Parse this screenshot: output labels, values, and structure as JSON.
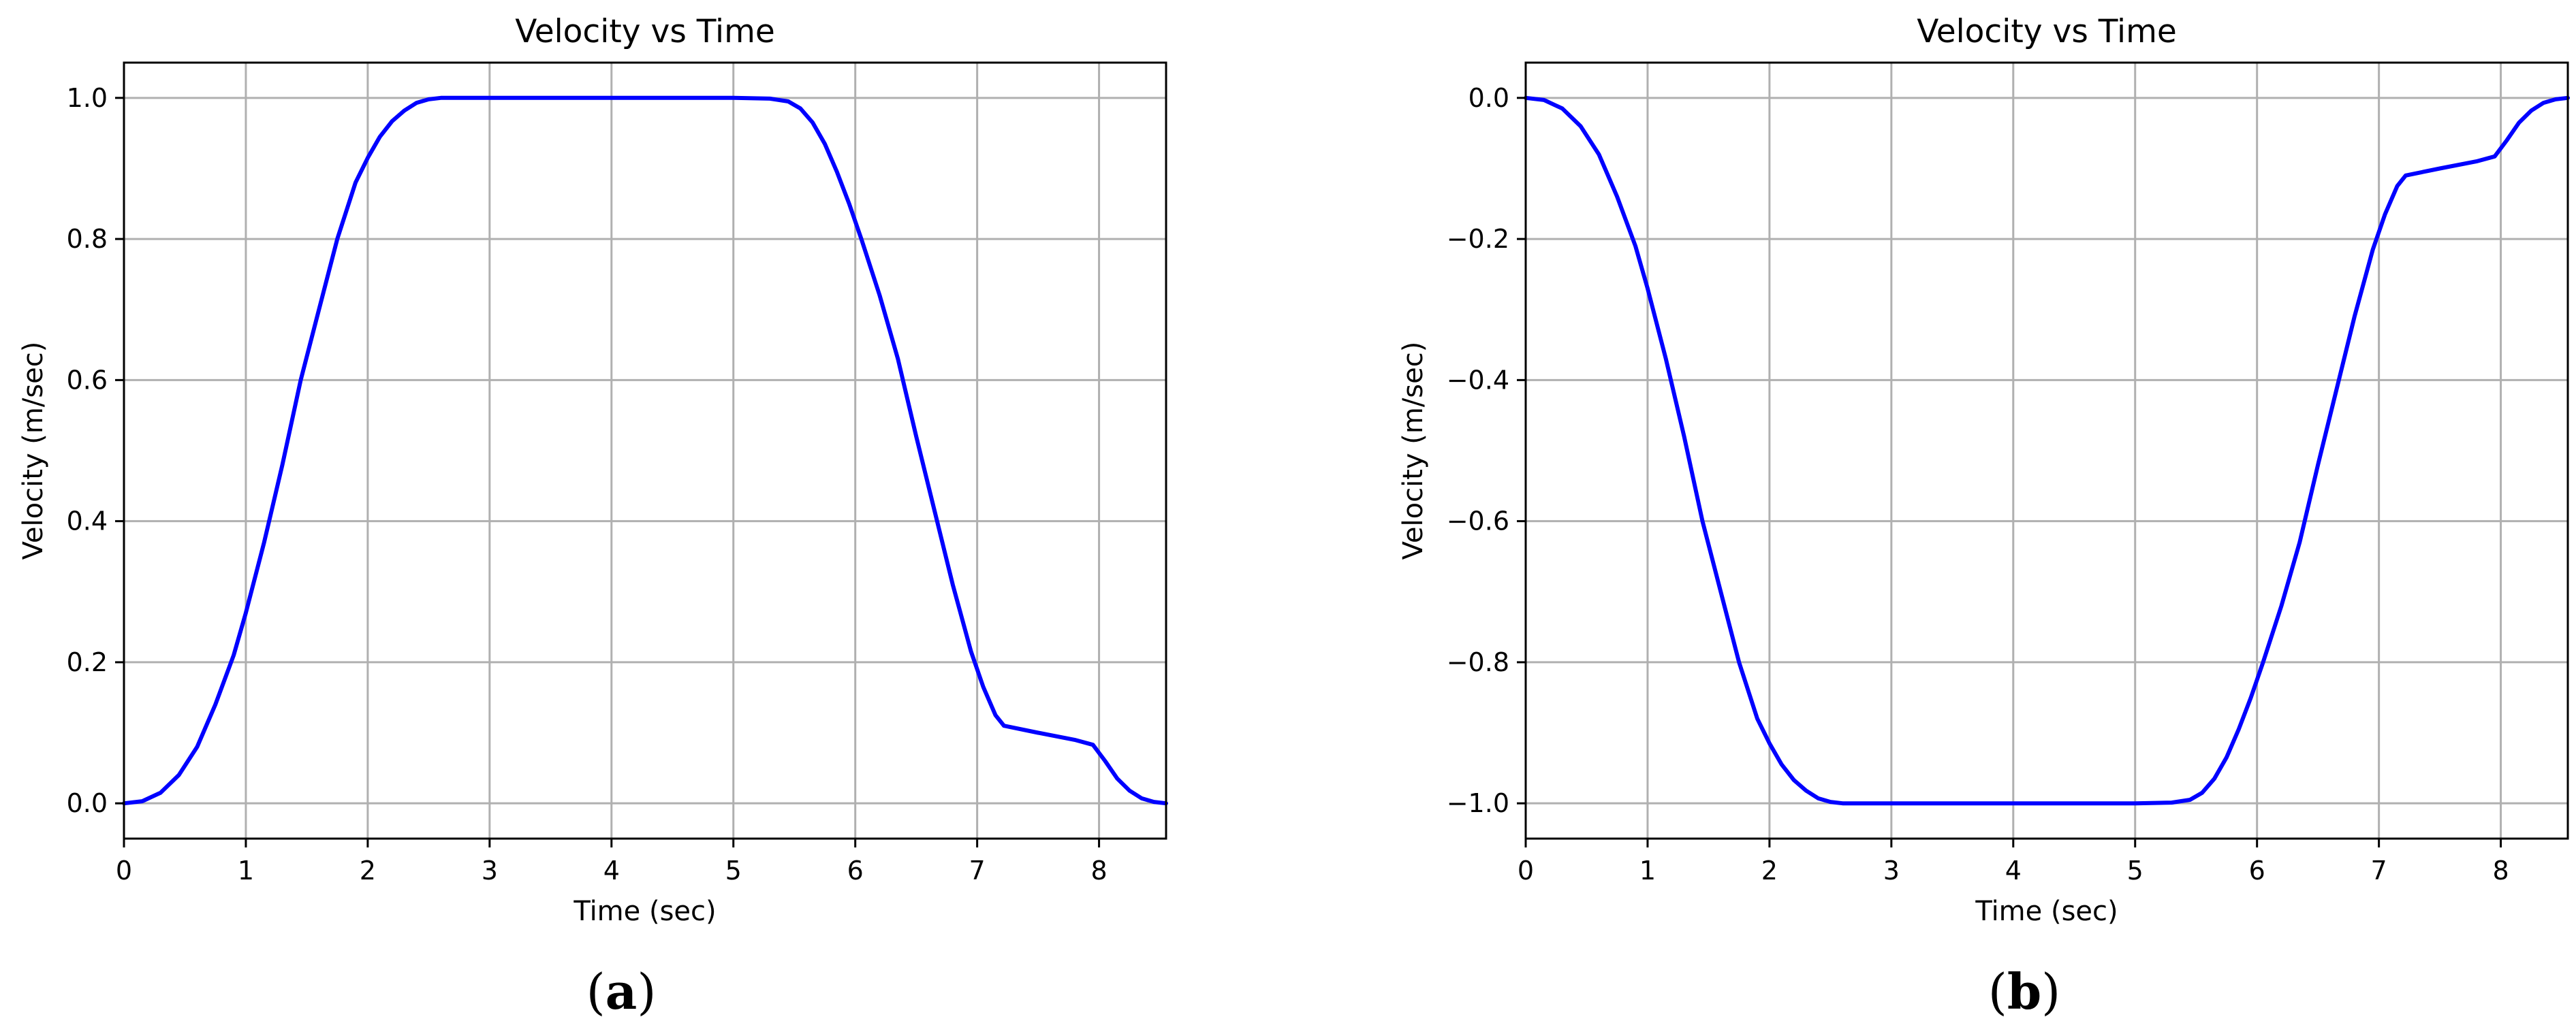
{
  "chart_data": [
    {
      "type": "line",
      "title": "Velocity vs Time",
      "xlabel": "Time (sec)",
      "ylabel": "Velocity (m/sec)",
      "xlim": [
        0,
        8.55
      ],
      "ylim": [
        -0.05,
        1.05
      ],
      "xticks": [
        0,
        1,
        2,
        3,
        4,
        5,
        6,
        7,
        8
      ],
      "xtick_labels": [
        "0",
        "1",
        "2",
        "3",
        "4",
        "5",
        "6",
        "7",
        "8"
      ],
      "yticks": [
        0.0,
        0.2,
        0.4,
        0.6,
        0.8,
        1.0
      ],
      "ytick_labels": [
        "0.0",
        "0.2",
        "0.4",
        "0.6",
        "0.8",
        "1.0"
      ],
      "grid": true,
      "caption": "a",
      "line_color": "#0000ff",
      "series": [
        {
          "x": [
            0,
            0.15,
            0.3,
            0.45,
            0.6,
            0.75,
            0.9,
            1.0,
            1.15,
            1.3,
            1.45,
            1.6,
            1.75,
            1.9,
            2.0,
            2.1,
            2.2,
            2.3,
            2.4,
            2.5,
            2.6,
            2.7,
            2.85,
            3.0,
            4.0,
            5.0,
            5.3,
            5.45,
            5.55,
            5.65,
            5.75,
            5.85,
            5.95,
            6.05,
            6.2,
            6.35,
            6.5,
            6.65,
            6.8,
            6.95,
            7.05,
            7.15,
            7.22,
            7.5,
            7.8,
            7.95,
            8.05,
            8.15,
            8.25,
            8.35,
            8.45,
            8.55
          ],
          "y": [
            0.0,
            0.003,
            0.015,
            0.04,
            0.08,
            0.14,
            0.21,
            0.27,
            0.37,
            0.48,
            0.6,
            0.7,
            0.8,
            0.88,
            0.915,
            0.945,
            0.967,
            0.982,
            0.993,
            0.998,
            1.0,
            1.0,
            1.0,
            1.0,
            1.0,
            1.0,
            0.999,
            0.995,
            0.985,
            0.965,
            0.935,
            0.895,
            0.85,
            0.8,
            0.72,
            0.63,
            0.52,
            0.415,
            0.31,
            0.215,
            0.165,
            0.125,
            0.11,
            0.1,
            0.09,
            0.083,
            0.06,
            0.035,
            0.018,
            0.007,
            0.002,
            0.0
          ]
        }
      ]
    },
    {
      "type": "line",
      "title": "Velocity vs Time",
      "xlabel": "Time (sec)",
      "ylabel": "Velocity (m/sec)",
      "xlim": [
        0,
        8.55
      ],
      "ylim": [
        -1.05,
        0.05
      ],
      "xticks": [
        0,
        1,
        2,
        3,
        4,
        5,
        6,
        7,
        8
      ],
      "xtick_labels": [
        "0",
        "1",
        "2",
        "3",
        "4",
        "5",
        "6",
        "7",
        "8"
      ],
      "yticks": [
        -1.0,
        -0.8,
        -0.6,
        -0.4,
        -0.2,
        0.0
      ],
      "ytick_labels": [
        "−1.0",
        "−0.8",
        "−0.6",
        "−0.4",
        "−0.2",
        "0.0"
      ],
      "grid": true,
      "caption": "b",
      "line_color": "#0000ff",
      "series": [
        {
          "x": [
            0,
            0.15,
            0.3,
            0.45,
            0.6,
            0.75,
            0.9,
            1.0,
            1.15,
            1.3,
            1.45,
            1.6,
            1.75,
            1.9,
            2.0,
            2.1,
            2.2,
            2.3,
            2.4,
            2.5,
            2.6,
            2.7,
            2.85,
            3.0,
            4.0,
            5.0,
            5.3,
            5.45,
            5.55,
            5.65,
            5.75,
            5.85,
            5.95,
            6.05,
            6.2,
            6.35,
            6.5,
            6.65,
            6.8,
            6.95,
            7.05,
            7.15,
            7.22,
            7.5,
            7.8,
            7.95,
            8.05,
            8.15,
            8.25,
            8.35,
            8.45,
            8.55
          ],
          "y": [
            0.0,
            -0.003,
            -0.015,
            -0.04,
            -0.08,
            -0.14,
            -0.21,
            -0.27,
            -0.37,
            -0.48,
            -0.6,
            -0.7,
            -0.8,
            -0.88,
            -0.915,
            -0.945,
            -0.967,
            -0.982,
            -0.993,
            -0.998,
            -1.0,
            -1.0,
            -1.0,
            -1.0,
            -1.0,
            -1.0,
            -0.999,
            -0.995,
            -0.985,
            -0.965,
            -0.935,
            -0.895,
            -0.85,
            -0.8,
            -0.72,
            -0.63,
            -0.52,
            -0.415,
            -0.31,
            -0.215,
            -0.165,
            -0.125,
            -0.11,
            -0.1,
            -0.09,
            -0.083,
            -0.06,
            -0.035,
            -0.018,
            -0.007,
            -0.002,
            0.0
          ]
        }
      ]
    }
  ]
}
